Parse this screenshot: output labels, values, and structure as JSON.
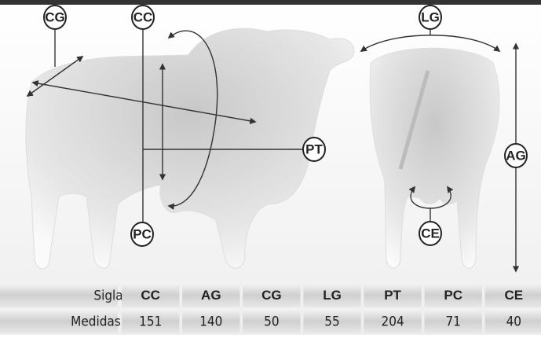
{
  "diagram_labels": [
    "CG",
    "CC",
    "LG",
    "PT",
    "AG",
    "PC",
    "CE"
  ],
  "table": {
    "header": [
      "Siglas",
      "CC",
      "AG",
      "CG",
      "LG",
      "PT",
      "PC",
      "CE"
    ],
    "rows": [
      [
        "Medidas (cm)",
        151,
        140,
        50,
        55,
        204,
        71,
        40
      ]
    ]
  }
}
